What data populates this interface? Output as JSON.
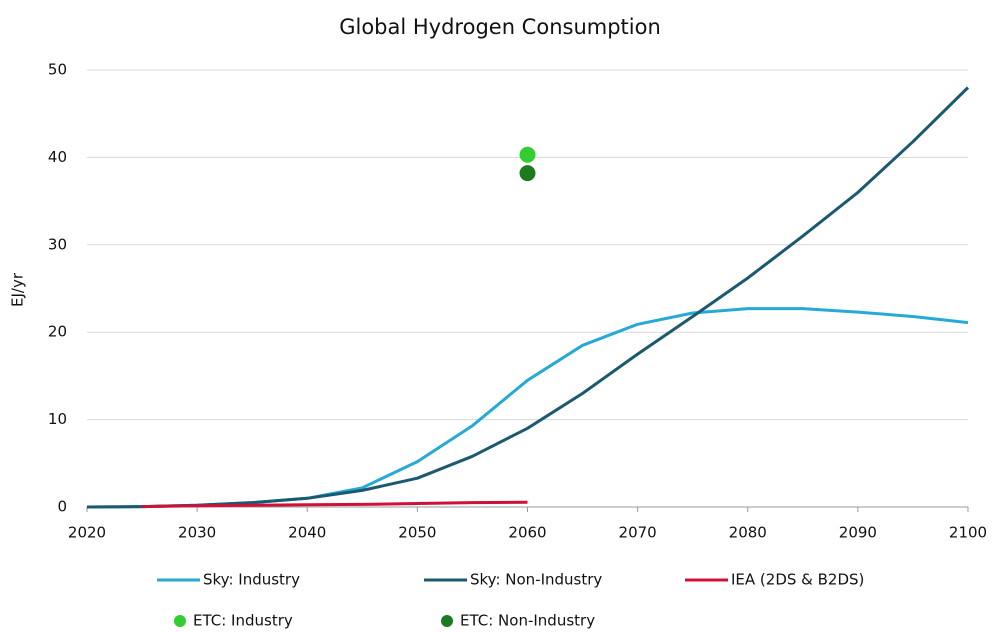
{
  "chart_data": {
    "type": "line",
    "title": "Global Hydrogen Consumption",
    "y_label": "EJ/yr",
    "x": [
      2020,
      2025,
      2030,
      2035,
      2040,
      2045,
      2050,
      2055,
      2060,
      2065,
      2070,
      2075,
      2080,
      2085,
      2090,
      2095,
      2100
    ],
    "series": [
      {
        "name": "Sky: Industry",
        "color": "#27a9d6",
        "values": [
          0,
          0.05,
          0.2,
          0.5,
          1.0,
          2.2,
          5.2,
          9.3,
          14.5,
          18.5,
          20.9,
          22.2,
          22.7,
          22.7,
          22.3,
          21.8,
          21.1
        ]
      },
      {
        "name": "Sky: Non-Industry",
        "color": "#1b5a6e",
        "values": [
          0,
          0.05,
          0.2,
          0.5,
          1.0,
          1.9,
          3.3,
          5.8,
          9.0,
          13.0,
          17.5,
          21.8,
          26.2,
          31.0,
          36.0,
          41.8,
          48.0
        ]
      },
      {
        "name": "IEA (2DS & B2DS)",
        "color": "#d0103a",
        "values": [
          null,
          0.05,
          0.15,
          0.2,
          0.25,
          0.3,
          0.4,
          0.5,
          0.55,
          null,
          null,
          null,
          null,
          null,
          null,
          null,
          null
        ]
      },
      {
        "name": "ETC: Industry",
        "type": "scatter",
        "color": "#33cc33",
        "x": [
          2060
        ],
        "values": [
          40.3
        ]
      },
      {
        "name": "ETC: Non-Industry",
        "type": "scatter",
        "color": "#1e7a1e",
        "x": [
          2060
        ],
        "values": [
          38.2
        ]
      }
    ],
    "xlim": [
      2020,
      2100
    ],
    "xticks": [
      2020,
      2030,
      2040,
      2050,
      2060,
      2070,
      2080,
      2090,
      2100
    ],
    "ylim": [
      0,
      50
    ],
    "yticks": [
      0,
      10,
      20,
      30,
      40,
      50
    ],
    "grid": true
  }
}
